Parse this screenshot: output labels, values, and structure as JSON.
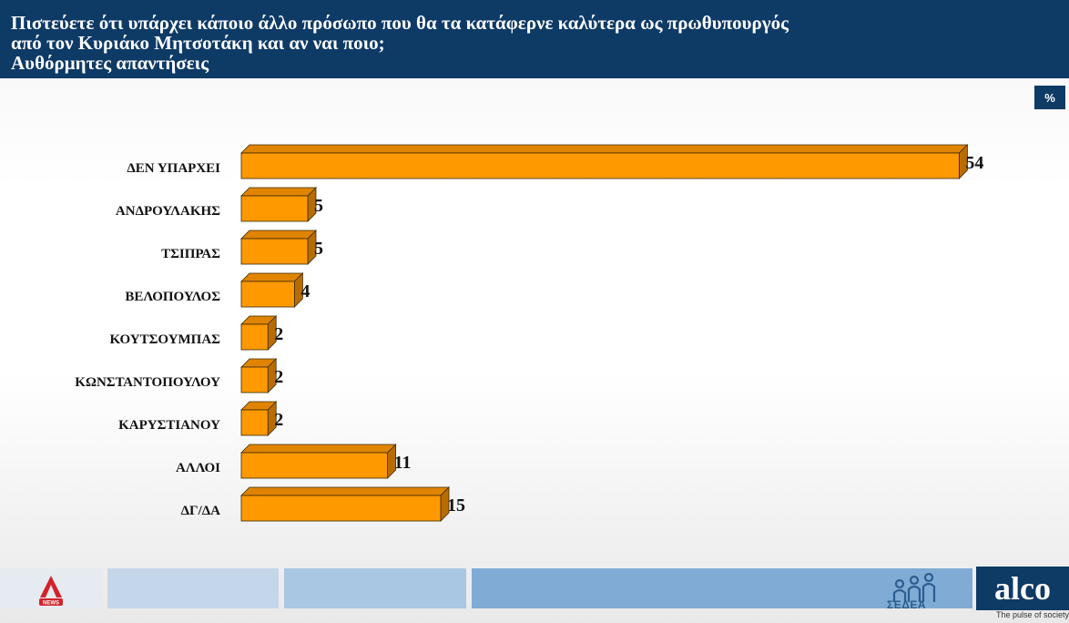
{
  "header": {
    "title_line1": "Πιστεύετε ότι υπάρχει κάποιο άλλο πρόσωπο που θα τα κατάφερνε καλύτερα ως πρωθυπουργός",
    "title_line2": "από τον Κυριάκο Μητσοτάκη και αν ναι ποιο;",
    "title_line3": "Αυθόρμητες απαντήσεις"
  },
  "unit_badge": "%",
  "chart_data": {
    "type": "bar",
    "orientation": "horizontal",
    "title": "Πιστεύετε ότι υπάρχει κάποιο άλλο πρόσωπο που θα τα κατάφερνε καλύτερα ως πρωθυπουργός από τον Κυριάκο Μητσοτάκη και αν ναι ποιο; Αυθόρμητες απαντήσεις",
    "unit": "%",
    "categories": [
      "ΔΕΝ ΥΠΑΡΧΕΙ",
      "ΑΝΔΡΟΥΛΑΚΗΣ",
      "ΤΣΙΠΡΑΣ",
      "ΒΕΛΟΠΟΥΛΟΣ",
      "ΚΟΥΤΣΟΥΜΠΑΣ",
      "ΚΩΝΣΤΑΝΤΟΠΟΥΛΟΥ",
      "ΚΑΡΥΣΤΙΑΝΟΥ",
      "ΑΛΛΟΙ",
      "ΔΓ/ΔΑ"
    ],
    "values": [
      54,
      5,
      5,
      4,
      2,
      2,
      2,
      11,
      15
    ],
    "bar_color": "#ff9900",
    "bar_top_color": "#e08400",
    "bar_side_color": "#b86c00",
    "three_d": true,
    "grid": false,
    "legend": "none"
  },
  "footer": {
    "sedea_label": "ΣΕΔΕΑ",
    "alco_logo": "alco",
    "alco_tagline": "The pulse of society",
    "alpha_logo_text": "NEWS",
    "colors": {
      "header_bg": "#0e3a66",
      "strip1": "#e6ebf1",
      "strip2": "#c4d6ea",
      "strip3": "#a9c6e2",
      "strip4": "#7fabd5"
    }
  }
}
